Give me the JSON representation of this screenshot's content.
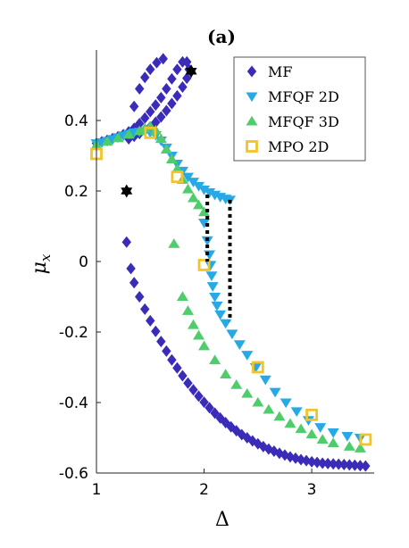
{
  "chart_data": {
    "type": "scatter",
    "title": "(a)",
    "xlabel": "Δ",
    "ylabel": "μ",
    "ylabel_sub": "x",
    "xlim": [
      1,
      3.58
    ],
    "ylim": [
      -0.6,
      0.6
    ],
    "xticks": [
      1,
      2,
      3
    ],
    "xtick_labels": [
      "1",
      "2",
      "3"
    ],
    "yticks": [
      0.4,
      0.2,
      0,
      -0.2,
      -0.4,
      -0.6
    ],
    "ytick_labels": [
      "0.4",
      "0.2",
      "0",
      "-0.2",
      "-0.4",
      "-0.6"
    ],
    "grid": false,
    "legend_position": "top-right",
    "series": [
      {
        "name": "MF",
        "marker": "diamond",
        "color": "#3a2bb8",
        "points": [
          [
            1.0,
            0.335
          ],
          [
            1.05,
            0.34
          ],
          [
            1.1,
            0.344
          ],
          [
            1.15,
            0.349
          ],
          [
            1.2,
            0.354
          ],
          [
            1.25,
            0.36
          ],
          [
            1.3,
            0.368
          ],
          [
            1.35,
            0.378
          ],
          [
            1.4,
            0.391
          ],
          [
            1.45,
            0.407
          ],
          [
            1.5,
            0.425
          ],
          [
            1.55,
            0.444
          ],
          [
            1.6,
            0.465
          ],
          [
            1.65,
            0.49
          ],
          [
            1.7,
            0.518
          ],
          [
            1.75,
            0.545
          ],
          [
            1.8,
            0.566
          ],
          [
            1.84,
            0.566
          ],
          [
            1.86,
            0.545
          ],
          [
            1.84,
            0.52
          ],
          [
            1.8,
            0.495
          ],
          [
            1.75,
            0.47
          ],
          [
            1.7,
            0.448
          ],
          [
            1.65,
            0.428
          ],
          [
            1.6,
            0.41
          ],
          [
            1.55,
            0.395
          ],
          [
            1.5,
            0.382
          ],
          [
            1.45,
            0.372
          ],
          [
            1.4,
            0.363
          ],
          [
            1.35,
            0.355
          ],
          [
            1.3,
            0.348
          ],
          [
            1.35,
            0.44
          ],
          [
            1.4,
            0.49
          ],
          [
            1.45,
            0.522
          ],
          [
            1.5,
            0.545
          ],
          [
            1.56,
            0.564
          ],
          [
            1.62,
            0.575
          ],
          [
            1.28,
            0.055
          ],
          [
            1.32,
            -0.02
          ],
          [
            1.35,
            -0.06
          ],
          [
            1.4,
            -0.1
          ],
          [
            1.45,
            -0.135
          ],
          [
            1.5,
            -0.168
          ],
          [
            1.55,
            -0.198
          ],
          [
            1.6,
            -0.227
          ],
          [
            1.65,
            -0.254
          ],
          [
            1.7,
            -0.279
          ],
          [
            1.75,
            -0.302
          ],
          [
            1.8,
            -0.324
          ],
          [
            1.85,
            -0.345
          ],
          [
            1.9,
            -0.364
          ],
          [
            1.95,
            -0.382
          ],
          [
            2.0,
            -0.399
          ],
          [
            2.05,
            -0.415
          ],
          [
            2.1,
            -0.43
          ],
          [
            2.15,
            -0.444
          ],
          [
            2.2,
            -0.457
          ],
          [
            2.25,
            -0.469
          ],
          [
            2.3,
            -0.48
          ],
          [
            2.35,
            -0.491
          ],
          [
            2.4,
            -0.5
          ],
          [
            2.45,
            -0.509
          ],
          [
            2.5,
            -0.517
          ],
          [
            2.55,
            -0.525
          ],
          [
            2.6,
            -0.532
          ],
          [
            2.65,
            -0.538
          ],
          [
            2.7,
            -0.544
          ],
          [
            2.75,
            -0.549
          ],
          [
            2.8,
            -0.554
          ],
          [
            2.85,
            -0.558
          ],
          [
            2.9,
            -0.562
          ],
          [
            2.95,
            -0.565
          ],
          [
            3.0,
            -0.568
          ],
          [
            3.05,
            -0.57
          ],
          [
            3.1,
            -0.572
          ],
          [
            3.15,
            -0.573
          ],
          [
            3.2,
            -0.574
          ],
          [
            3.25,
            -0.575
          ],
          [
            3.3,
            -0.576
          ],
          [
            3.35,
            -0.577
          ],
          [
            3.4,
            -0.578
          ],
          [
            3.45,
            -0.579
          ],
          [
            3.5,
            -0.58
          ]
        ]
      },
      {
        "name": "MFQF 2D",
        "marker": "triangle-down",
        "color": "#27a9e5",
        "points": [
          [
            1.0,
            0.335
          ],
          [
            1.05,
            0.338
          ],
          [
            1.1,
            0.342
          ],
          [
            1.15,
            0.347
          ],
          [
            1.2,
            0.352
          ],
          [
            1.25,
            0.357
          ],
          [
            1.3,
            0.362
          ],
          [
            1.35,
            0.366
          ],
          [
            1.4,
            0.368
          ],
          [
            1.45,
            0.369
          ],
          [
            1.5,
            0.366
          ],
          [
            1.55,
            0.358
          ],
          [
            1.6,
            0.343
          ],
          [
            1.65,
            0.323
          ],
          [
            1.7,
            0.3
          ],
          [
            1.75,
            0.277
          ],
          [
            1.8,
            0.257
          ],
          [
            1.85,
            0.24
          ],
          [
            1.9,
            0.226
          ],
          [
            1.95,
            0.214
          ],
          [
            2.0,
            0.204
          ],
          [
            2.05,
            0.196
          ],
          [
            2.1,
            0.189
          ],
          [
            2.15,
            0.183
          ],
          [
            2.2,
            0.178
          ],
          [
            2.24,
            0.175
          ],
          [
            2.0,
            0.11
          ],
          [
            2.03,
            0.06
          ],
          [
            2.05,
            0.02
          ],
          [
            2.06,
            -0.01
          ],
          [
            2.07,
            -0.04
          ],
          [
            2.08,
            -0.07
          ],
          [
            2.1,
            -0.1
          ],
          [
            2.12,
            -0.125
          ],
          [
            2.15,
            -0.15
          ],
          [
            2.2,
            -0.175
          ],
          [
            2.26,
            -0.205
          ],
          [
            2.33,
            -0.235
          ],
          [
            2.4,
            -0.265
          ],
          [
            2.48,
            -0.3
          ],
          [
            2.57,
            -0.335
          ],
          [
            2.66,
            -0.37
          ],
          [
            2.76,
            -0.4
          ],
          [
            2.86,
            -0.425
          ],
          [
            2.97,
            -0.45
          ],
          [
            3.08,
            -0.47
          ],
          [
            3.2,
            -0.485
          ],
          [
            3.33,
            -0.495
          ],
          [
            3.45,
            -0.5
          ]
        ]
      },
      {
        "name": "MFQF 3D",
        "marker": "triangle-up",
        "color": "#4fcc6b",
        "points": [
          [
            1.0,
            0.33
          ],
          [
            1.1,
            0.34
          ],
          [
            1.2,
            0.35
          ],
          [
            1.3,
            0.36
          ],
          [
            1.4,
            0.37
          ],
          [
            1.45,
            0.378
          ],
          [
            1.5,
            0.383
          ],
          [
            1.55,
            0.372
          ],
          [
            1.6,
            0.348
          ],
          [
            1.65,
            0.318
          ],
          [
            1.7,
            0.29
          ],
          [
            1.75,
            0.262
          ],
          [
            1.8,
            0.232
          ],
          [
            1.85,
            0.205
          ],
          [
            1.9,
            0.18
          ],
          [
            1.95,
            0.16
          ],
          [
            2.0,
            0.14
          ],
          [
            1.72,
            0.05
          ],
          [
            1.8,
            -0.1
          ],
          [
            1.85,
            -0.14
          ],
          [
            1.9,
            -0.18
          ],
          [
            1.95,
            -0.21
          ],
          [
            2.0,
            -0.24
          ],
          [
            2.1,
            -0.28
          ],
          [
            2.2,
            -0.32
          ],
          [
            2.3,
            -0.35
          ],
          [
            2.4,
            -0.375
          ],
          [
            2.5,
            -0.4
          ],
          [
            2.6,
            -0.42
          ],
          [
            2.7,
            -0.44
          ],
          [
            2.8,
            -0.46
          ],
          [
            2.9,
            -0.475
          ],
          [
            3.0,
            -0.49
          ],
          [
            3.1,
            -0.505
          ],
          [
            3.2,
            -0.515
          ],
          [
            3.35,
            -0.525
          ],
          [
            3.45,
            -0.53
          ]
        ]
      },
      {
        "name": "MPO 2D",
        "marker": "square",
        "color": "#f2c42a",
        "points": [
          [
            1.0,
            0.305
          ],
          [
            1.5,
            0.365
          ],
          [
            1.75,
            0.24
          ],
          [
            2.0,
            -0.01
          ],
          [
            2.5,
            -0.3
          ],
          [
            3.0,
            -0.435
          ],
          [
            3.5,
            -0.505
          ]
        ]
      }
    ],
    "hexagram_markers": [
      [
        1.28,
        0.2
      ],
      [
        1.88,
        0.54
      ]
    ],
    "dotted_lines": [
      [
        [
          2.03,
          0.19
        ],
        [
          2.03,
          0.0
        ]
      ],
      [
        [
          2.24,
          0.175
        ],
        [
          2.24,
          -0.17
        ]
      ]
    ]
  }
}
